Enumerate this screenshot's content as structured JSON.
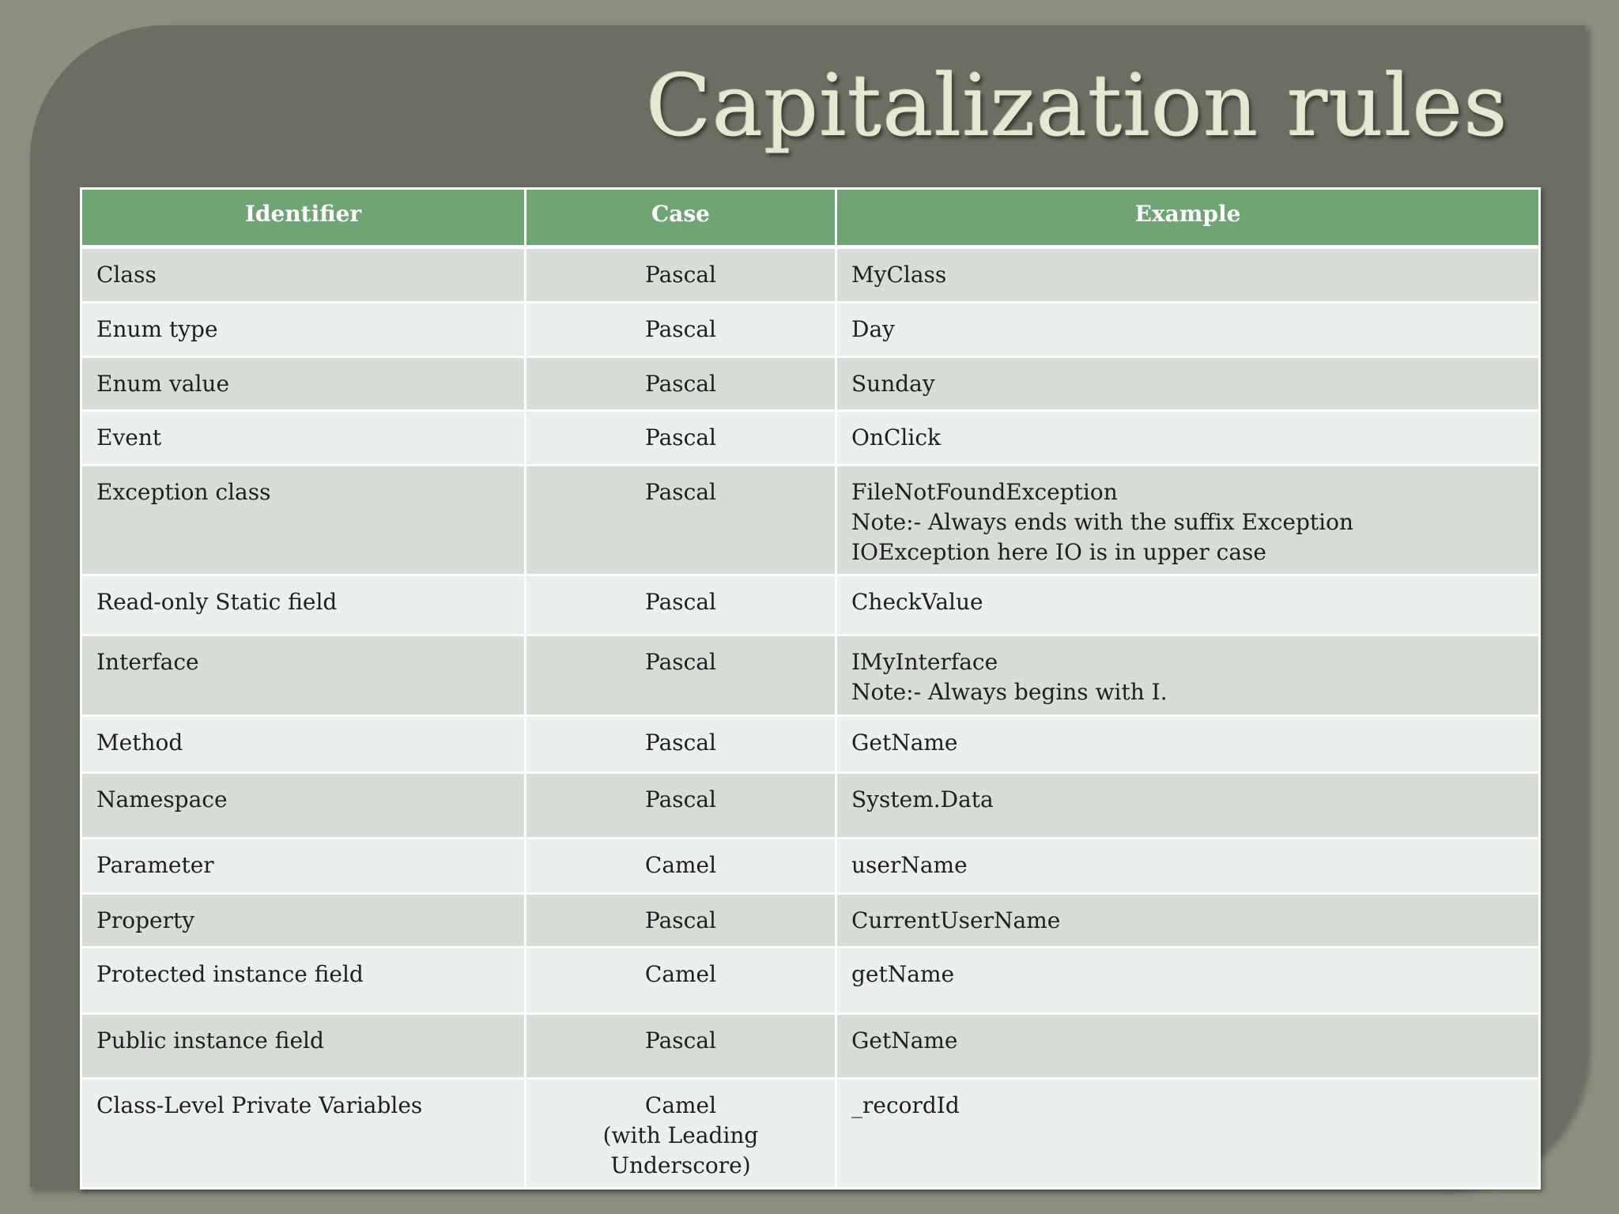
{
  "slide": {
    "title": "Capitalization rules"
  },
  "table": {
    "headers": [
      "Identifier",
      "Case",
      "Example"
    ],
    "rows": [
      {
        "identifier": "Class",
        "case": "Pascal",
        "example": "MyClass"
      },
      {
        "identifier": "Enum type",
        "case": "Pascal",
        "example": "Day"
      },
      {
        "identifier": "Enum value",
        "case": "Pascal",
        "example": "Sunday"
      },
      {
        "identifier": "Event",
        "case": "Pascal",
        "example": "OnClick"
      },
      {
        "identifier": "Exception class",
        "case": "Pascal",
        "example": "FileNotFoundException\nNote:- Always ends with the suffix Exception\nIOException  here IO is in upper case"
      },
      {
        "identifier": "Read-only Static field",
        "case": "Pascal",
        "example": "CheckValue"
      },
      {
        "identifier": "Interface",
        "case": "Pascal",
        "example": "IMyInterface\nNote:- Always begins with I."
      },
      {
        "identifier": "Method",
        "case": "Pascal",
        "example": "GetName"
      },
      {
        "identifier": "Namespace",
        "case": "Pascal",
        "example": "System.Data"
      },
      {
        "identifier": "Parameter",
        "case": "Camel",
        "example": "userName"
      },
      {
        "identifier": "Property",
        "case": "Pascal",
        "example": "CurrentUserName"
      },
      {
        "identifier": "Protected instance field",
        "case": "Camel",
        "example": "getName"
      },
      {
        "identifier": "Public instance field",
        "case": "Pascal",
        "example": "GetName"
      },
      {
        "identifier": "Class-Level Private Variables",
        "case": "Camel\n(with Leading\nUnderscore)",
        "example": "_recordId"
      }
    ]
  },
  "colors": {
    "header_fill": "#71a475",
    "row_odd": "#d8ded7",
    "row_even": "#ecf0ec",
    "frame": "#6b6f61",
    "background": "#8b907f",
    "title_text": "#e6e8cf"
  }
}
